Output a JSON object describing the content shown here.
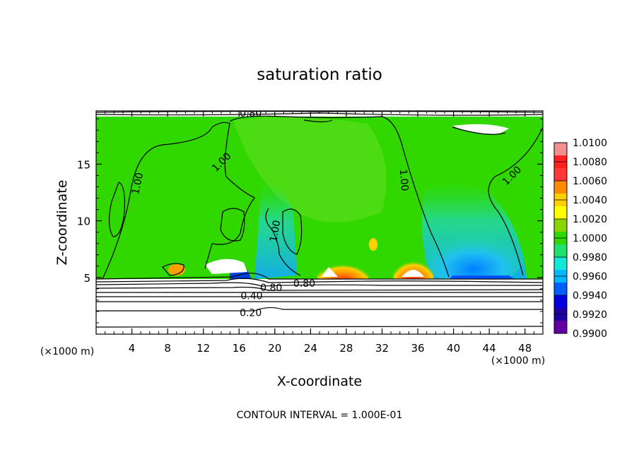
{
  "chart_data": {
    "type": "heatmap",
    "title": "saturation ratio",
    "xlabel": "X-coordinate",
    "ylabel": "Z-coordinate",
    "x_unit": "(×1000 m)",
    "z_unit": "(×1000 m)",
    "x_ticks": [
      4,
      8,
      12,
      16,
      20,
      24,
      28,
      32,
      36,
      40,
      44,
      48
    ],
    "z_ticks": [
      5,
      10,
      15
    ],
    "xlim": [
      0,
      50
    ],
    "zlim": [
      0,
      19.7
    ],
    "footer": "CONTOUR INTERVAL = 1.000E-01",
    "colorbar": {
      "labels": [
        "1.0100",
        "1.0080",
        "1.0060",
        "1.0040",
        "1.0020",
        "1.0000",
        "0.9980",
        "0.9960",
        "0.9940",
        "0.9920",
        "0.9900"
      ],
      "bands": [
        "#f09090",
        "#ff2020",
        "#ff3838",
        "#ff8c00",
        "#ffd000",
        "#ffff00",
        "#8ad400",
        "#30d800",
        "#20e070",
        "#10e8d8",
        "#00b8ff",
        "#0060ff",
        "#0000e0",
        "#2000a0",
        "#6000a0"
      ]
    },
    "contour_labels": [
      {
        "text": "0.80",
        "x": 17.3,
        "z": 19.5
      },
      {
        "text": "1.00",
        "x": 4.6,
        "z": 13.3,
        "rot": -78
      },
      {
        "text": "1.00",
        "x": 14.0,
        "z": 15.2,
        "rot": -45
      },
      {
        "text": "1.00",
        "x": 20.0,
        "z": 9.1,
        "rot": -80
      },
      {
        "text": "1.00",
        "x": 34.5,
        "z": 13.6,
        "rot": 85
      },
      {
        "text": "1.00",
        "x": 46.5,
        "z": 14.0,
        "rot": -45
      },
      {
        "text": "0.80",
        "x": 19.6,
        "z": 4.1
      },
      {
        "text": "0.80",
        "x": 23.3,
        "z": 4.5
      },
      {
        "text": "0.40",
        "x": 17.4,
        "z": 3.4
      },
      {
        "text": "0.20",
        "x": 17.3,
        "z": 1.9
      }
    ]
  }
}
